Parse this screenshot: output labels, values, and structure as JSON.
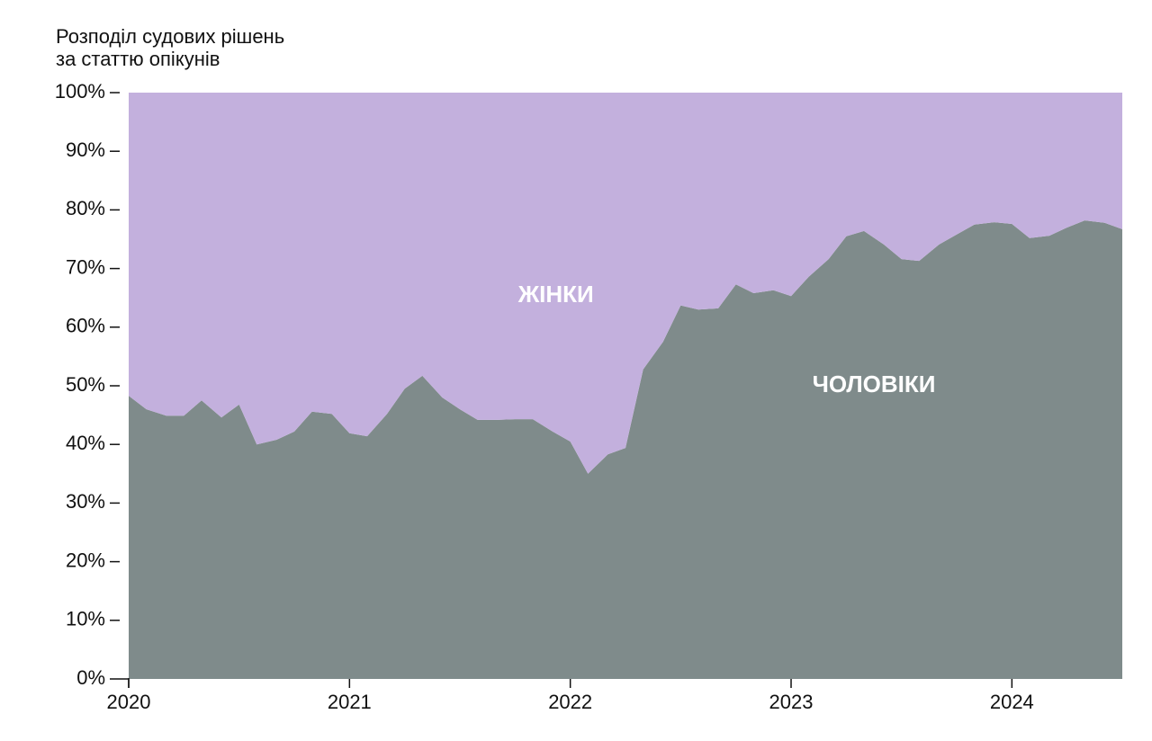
{
  "chart_data": {
    "type": "stacked-area",
    "title": [
      "Розподіл судових рішень",
      "за статтю опікунів"
    ],
    "x": [
      2020.0,
      2020.08,
      2020.17,
      2020.25,
      2020.33,
      2020.42,
      2020.5,
      2020.58,
      2020.67,
      2020.75,
      2020.83,
      2020.92,
      2021.0,
      2021.08,
      2021.17,
      2021.25,
      2021.33,
      2021.42,
      2021.5,
      2021.58,
      2021.67,
      2021.75,
      2021.83,
      2021.92,
      2022.0,
      2022.08,
      2022.17,
      2022.25,
      2022.33,
      2022.42,
      2022.5,
      2022.58,
      2022.67,
      2022.75,
      2022.83,
      2022.92,
      2023.0,
      2023.08,
      2023.17,
      2023.25,
      2023.33,
      2023.42,
      2023.5,
      2023.58,
      2023.67,
      2023.75,
      2023.83,
      2023.92,
      2024.0,
      2024.08,
      2024.17,
      2024.25,
      2024.33,
      2024.42,
      2024.5
    ],
    "series": [
      {
        "name": "ЧОЛОВІКИ",
        "color": "#7f8b8b",
        "values": [
          48.3,
          46.0,
          44.9,
          44.9,
          47.5,
          44.6,
          46.8,
          40.0,
          40.8,
          42.2,
          45.6,
          45.2,
          41.9,
          41.4,
          45.2,
          49.5,
          51.7,
          48.0,
          46.0,
          44.2,
          44.2,
          44.3,
          44.3,
          42.2,
          40.5,
          35.0,
          38.3,
          39.4,
          52.8,
          57.5,
          63.7,
          63.0,
          63.2,
          67.3,
          65.8,
          66.3,
          65.3,
          68.6,
          71.6,
          75.5,
          76.4,
          74.1,
          71.6,
          71.3,
          74.1,
          75.8,
          77.5,
          77.9,
          77.6,
          75.2,
          75.6,
          77.0,
          78.2,
          77.8,
          76.7
        ]
      },
      {
        "name": "ЖІНКИ",
        "color": "#c3b0dd",
        "values": [
          51.7,
          54.0,
          55.1,
          55.1,
          52.5,
          55.4,
          53.2,
          60.0,
          59.2,
          57.8,
          54.4,
          54.8,
          58.1,
          58.6,
          54.8,
          50.5,
          48.3,
          52.0,
          54.0,
          55.8,
          55.8,
          55.7,
          55.7,
          57.8,
          59.5,
          65.0,
          61.7,
          60.6,
          47.2,
          42.5,
          36.3,
          37.0,
          36.8,
          32.7,
          34.2,
          33.7,
          34.7,
          31.4,
          28.4,
          24.5,
          23.6,
          25.9,
          28.4,
          28.7,
          25.9,
          24.2,
          22.5,
          22.1,
          22.4,
          24.8,
          24.4,
          23.0,
          21.8,
          22.2,
          23.3
        ]
      }
    ],
    "xlim": [
      2020,
      2024.5
    ],
    "xticks": [
      2020,
      2021,
      2022,
      2023,
      2024
    ],
    "ylim": [
      0,
      100
    ],
    "yticks": [
      {
        "value": 0,
        "label": "0%"
      },
      {
        "value": 10,
        "label": "10%"
      },
      {
        "value": 20,
        "label": "20%"
      },
      {
        "value": 30,
        "label": "30%"
      },
      {
        "value": 40,
        "label": "40%"
      },
      {
        "value": 50,
        "label": "50%"
      },
      {
        "value": 60,
        "label": "60%"
      },
      {
        "value": 70,
        "label": "70%"
      },
      {
        "value": 80,
        "label": "80%"
      },
      {
        "value": 90,
        "label": "90%"
      },
      {
        "value": 100,
        "label": "100%"
      }
    ]
  }
}
